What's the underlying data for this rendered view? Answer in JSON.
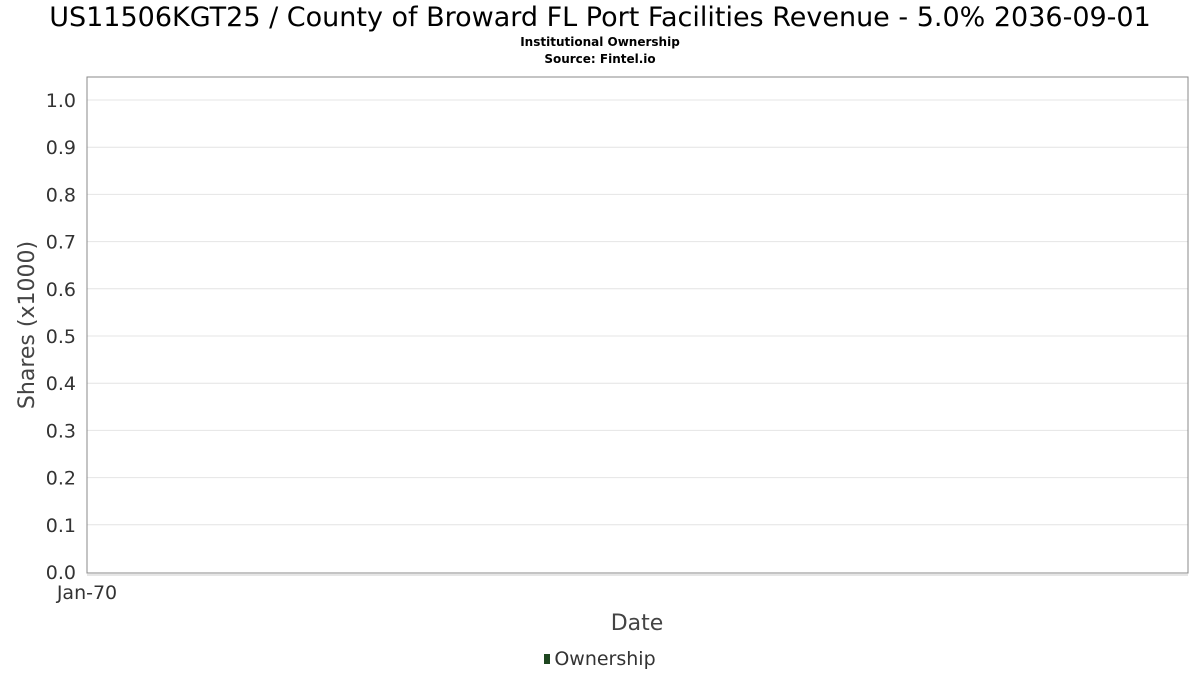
{
  "chart_data": {
    "type": "bar",
    "title": "US11506KGT25 / County of Broward FL Port Facilities Revenue - 5.0% 2036-09-01",
    "subtitle": "Institutional Ownership",
    "source": "Source: Fintel.io",
    "xlabel": "Date",
    "ylabel": "Shares (x1000)",
    "ylim": [
      0,
      1.0
    ],
    "y_ticks": [
      "0.0",
      "0.1",
      "0.2",
      "0.3",
      "0.4",
      "0.5",
      "0.6",
      "0.7",
      "0.8",
      "0.9",
      "1.0"
    ],
    "x_ticks": [
      "Jan-70"
    ],
    "grid": true,
    "legend_placement": "bottom-center",
    "series": [
      {
        "name": "Ownership",
        "color": "#1e4620",
        "values": []
      }
    ]
  }
}
